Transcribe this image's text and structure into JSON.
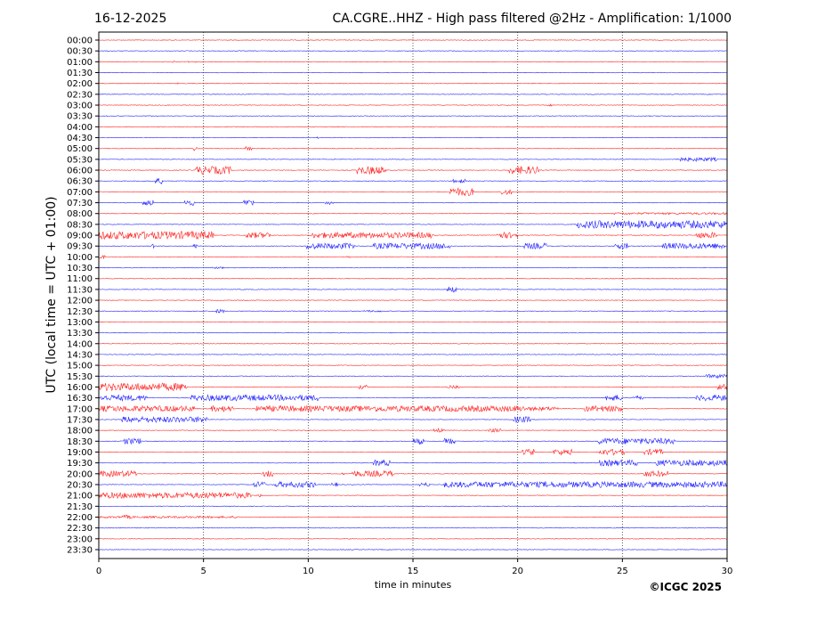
{
  "chart_data": {
    "type": "line",
    "title_left": "16-12-2025",
    "title": "CA.CGRE..HHZ - High pass filtered @2Hz - Amplification: 1/1000",
    "xlabel": "time in minutes",
    "ylabel": "UTC (local time = UTC + 01:00)",
    "xlim": [
      0,
      30
    ],
    "xticks": [
      "0",
      "5",
      "10",
      "15",
      "20",
      "25",
      "30"
    ],
    "xtick_values": [
      0,
      5,
      10,
      15,
      20,
      25,
      30
    ],
    "grid": "vertical dotted every 5 minutes",
    "colors": [
      "#ff0000",
      "#0000ff"
    ],
    "copyright": "©ICGC 2025",
    "traces": [
      {
        "label": "00:00",
        "bursts": []
      },
      {
        "label": "00:30",
        "bursts": []
      },
      {
        "label": "01:00",
        "bursts": [
          [
            3.5,
            3.6,
            1
          ],
          [
            4.2,
            4.3,
            1
          ],
          [
            4.6,
            4.7,
            1
          ]
        ]
      },
      {
        "label": "01:30",
        "bursts": []
      },
      {
        "label": "02:00",
        "bursts": [
          [
            3.7,
            3.8,
            1
          ]
        ]
      },
      {
        "label": "02:30",
        "bursts": []
      },
      {
        "label": "03:00",
        "bursts": [
          [
            21.4,
            21.6,
            1
          ]
        ]
      },
      {
        "label": "03:30",
        "bursts": []
      },
      {
        "label": "04:00",
        "bursts": []
      },
      {
        "label": "04:30",
        "bursts": [
          [
            10.4,
            10.6,
            1
          ]
        ]
      },
      {
        "label": "05:00",
        "bursts": [
          [
            4.5,
            4.7,
            3
          ],
          [
            7.0,
            7.3,
            2
          ]
        ]
      },
      {
        "label": "05:30",
        "bursts": [
          [
            27.5,
            29.5,
            2
          ]
        ]
      },
      {
        "label": "06:00",
        "bursts": [
          [
            4.6,
            6.3,
            4
          ],
          [
            12.3,
            13.7,
            4
          ],
          [
            19.6,
            21.0,
            4
          ]
        ]
      },
      {
        "label": "06:30",
        "bursts": [
          [
            2.7,
            3.1,
            3
          ],
          [
            16.9,
            17.5,
            2
          ]
        ]
      },
      {
        "label": "07:00",
        "bursts": [
          [
            16.7,
            17.9,
            4
          ],
          [
            19.2,
            19.7,
            3
          ]
        ]
      },
      {
        "label": "07:30",
        "bursts": [
          [
            2.1,
            2.6,
            3
          ],
          [
            4.1,
            4.6,
            3
          ],
          [
            6.9,
            7.4,
            3
          ],
          [
            10.8,
            11.2,
            2
          ]
        ]
      },
      {
        "label": "08:00",
        "bursts": [
          [
            24.5,
            30,
            1
          ]
        ]
      },
      {
        "label": "08:30",
        "bursts": [
          [
            22.8,
            30,
            4
          ]
        ]
      },
      {
        "label": "09:00",
        "bursts": [
          [
            0,
            5.5,
            4
          ],
          [
            7.0,
            8.2,
            3
          ],
          [
            10.1,
            16.0,
            3
          ],
          [
            19.0,
            20.0,
            3
          ],
          [
            28.5,
            29.5,
            3
          ]
        ]
      },
      {
        "label": "09:30",
        "bursts": [
          [
            2.5,
            2.7,
            2
          ],
          [
            4.5,
            4.7,
            2
          ],
          [
            9.9,
            12.2,
            3
          ],
          [
            13.1,
            16.8,
            3
          ],
          [
            20.3,
            21.4,
            3
          ],
          [
            24.6,
            25.3,
            3
          ],
          [
            26.9,
            30,
            3
          ]
        ]
      },
      {
        "label": "10:00",
        "bursts": [
          [
            0,
            0.3,
            2
          ],
          [
            11.8,
            12.0,
            1
          ]
        ]
      },
      {
        "label": "10:30",
        "bursts": [
          [
            5.3,
            6.0,
            1
          ]
        ]
      },
      {
        "label": "11:00",
        "bursts": [
          [
            13.4,
            13.6,
            1
          ]
        ]
      },
      {
        "label": "11:30",
        "bursts": [
          [
            16.6,
            17.1,
            3
          ]
        ]
      },
      {
        "label": "12:00",
        "bursts": []
      },
      {
        "label": "12:30",
        "bursts": [
          [
            5.6,
            6.0,
            2
          ],
          [
            12.6,
            13.5,
            1
          ]
        ]
      },
      {
        "label": "13:00",
        "bursts": []
      },
      {
        "label": "13:30",
        "bursts": []
      },
      {
        "label": "14:00",
        "bursts": []
      },
      {
        "label": "14:30",
        "bursts": []
      },
      {
        "label": "15:00",
        "bursts": []
      },
      {
        "label": "15:30",
        "bursts": [
          [
            29.0,
            30,
            2
          ]
        ]
      },
      {
        "label": "16:00",
        "bursts": [
          [
            0,
            4.2,
            4
          ],
          [
            12.4,
            12.8,
            2
          ],
          [
            16.6,
            17.2,
            2
          ],
          [
            29.5,
            30,
            3
          ]
        ]
      },
      {
        "label": "16:30",
        "bursts": [
          [
            0,
            2.3,
            3
          ],
          [
            4.4,
            10.5,
            3
          ],
          [
            24.2,
            25.0,
            3
          ],
          [
            25.5,
            26.0,
            2
          ],
          [
            28.5,
            30,
            3
          ]
        ]
      },
      {
        "label": "17:00",
        "bursts": [
          [
            0,
            4.6,
            3
          ],
          [
            5.3,
            6.4,
            3
          ],
          [
            7.5,
            20.3,
            3
          ],
          [
            20.3,
            22.0,
            2
          ],
          [
            23.2,
            25.0,
            3
          ]
        ]
      },
      {
        "label": "17:30",
        "bursts": [
          [
            1.1,
            5.2,
            3
          ],
          [
            19.8,
            20.6,
            3
          ]
        ]
      },
      {
        "label": "18:00",
        "bursts": [
          [
            16.0,
            16.5,
            2
          ],
          [
            18.6,
            19.2,
            2
          ]
        ]
      },
      {
        "label": "18:30",
        "bursts": [
          [
            1.2,
            2.0,
            3
          ],
          [
            15.0,
            15.5,
            3
          ],
          [
            16.5,
            17.0,
            3
          ],
          [
            23.8,
            27.5,
            3
          ]
        ]
      },
      {
        "label": "19:00",
        "bursts": [
          [
            20.2,
            20.8,
            3
          ],
          [
            21.7,
            22.6,
            3
          ],
          [
            23.9,
            25.1,
            3
          ],
          [
            26.0,
            27.0,
            3
          ]
        ]
      },
      {
        "label": "19:30",
        "bursts": [
          [
            13.1,
            13.9,
            3
          ],
          [
            22.5,
            22.8,
            1
          ],
          [
            23.9,
            25.7,
            3
          ],
          [
            26.6,
            30,
            3
          ]
        ]
      },
      {
        "label": "20:00",
        "bursts": [
          [
            0,
            1.8,
            3
          ],
          [
            7.8,
            8.3,
            3
          ],
          [
            11.5,
            11.8,
            1
          ],
          [
            12.1,
            14.1,
            3
          ],
          [
            26.0,
            27.2,
            3
          ]
        ]
      },
      {
        "label": "20:30",
        "bursts": [
          [
            7.4,
            8.0,
            3
          ],
          [
            8.4,
            10.4,
            3
          ],
          [
            11.1,
            11.4,
            2
          ],
          [
            15.3,
            15.8,
            2
          ],
          [
            16.5,
            30,
            3
          ]
        ]
      },
      {
        "label": "21:00",
        "bursts": [
          [
            0,
            7.3,
            3
          ],
          [
            7.6,
            7.8,
            2
          ]
        ]
      },
      {
        "label": "21:30",
        "bursts": []
      },
      {
        "label": "22:00",
        "bursts": [
          [
            1.1,
            1.5,
            2
          ],
          [
            0,
            6.7,
            1
          ]
        ]
      },
      {
        "label": "22:30",
        "bursts": []
      },
      {
        "label": "23:00",
        "bursts": []
      },
      {
        "label": "23:30",
        "bursts": []
      }
    ]
  }
}
